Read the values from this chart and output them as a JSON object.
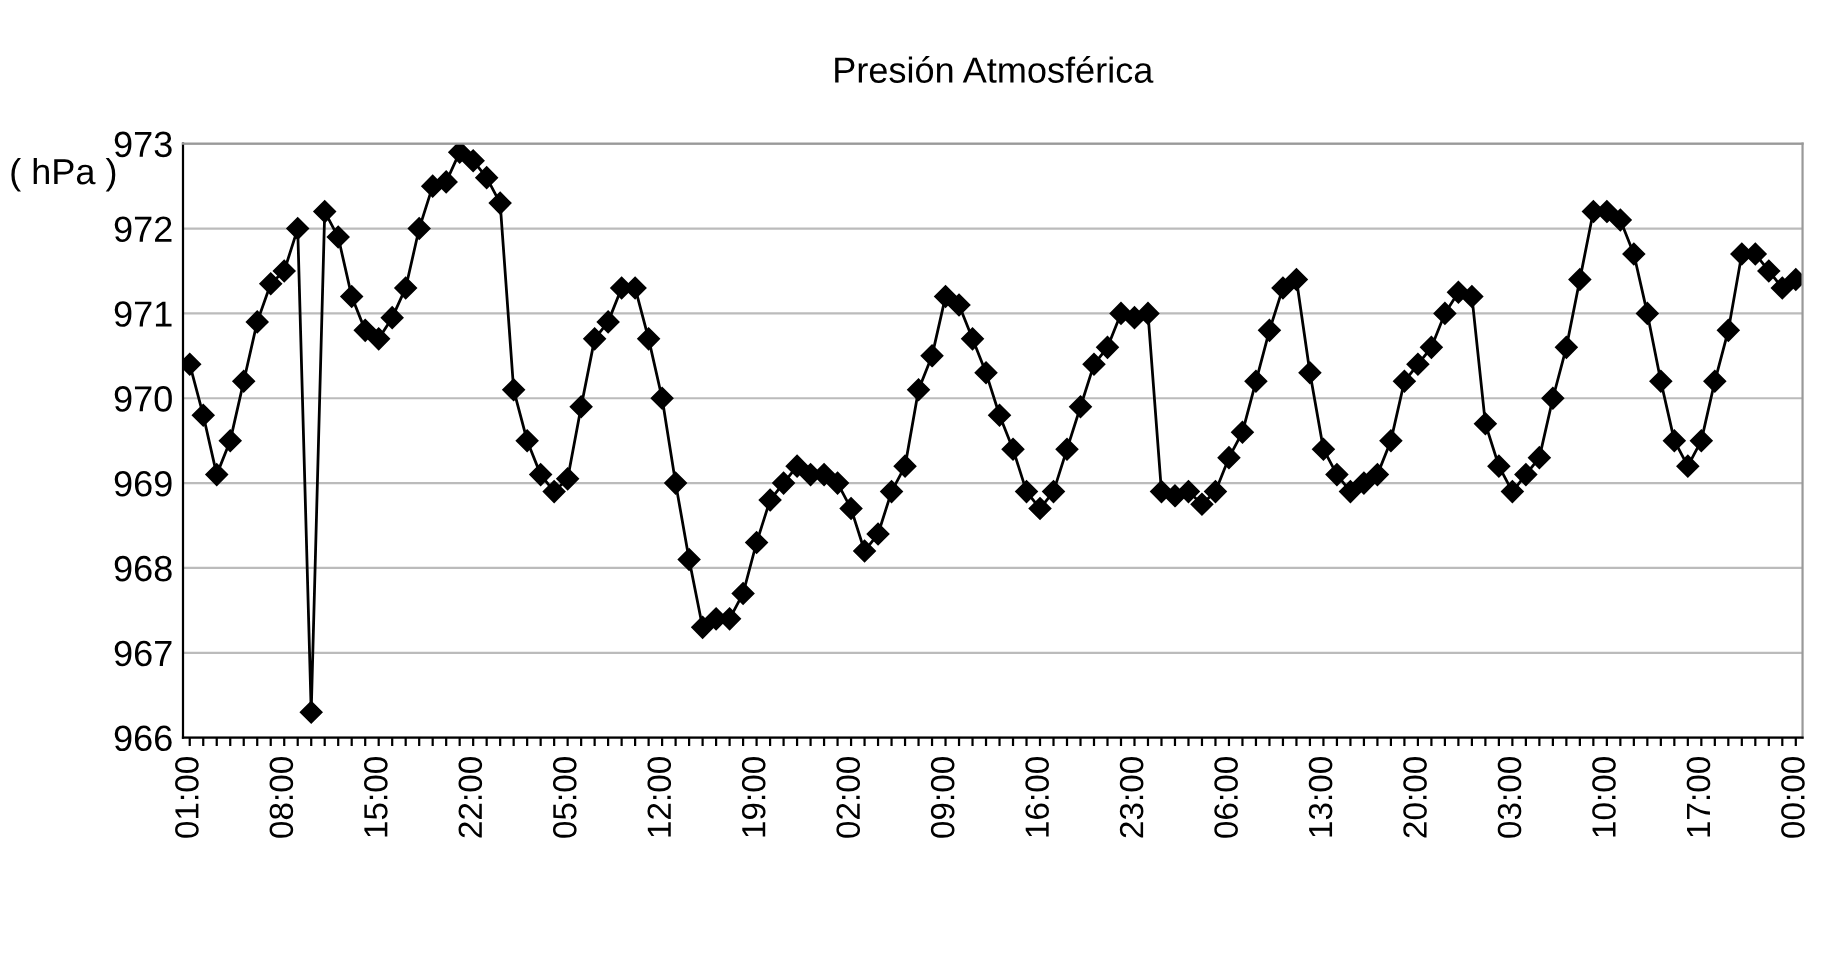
{
  "chart_data": {
    "type": "line",
    "title": "Presión Atmosférica",
    "ylabel": "( hPa )",
    "categories": [
      "01:00",
      null,
      null,
      null,
      null,
      null,
      null,
      "08:00",
      null,
      null,
      null,
      null,
      null,
      null,
      "15:00",
      null,
      null,
      null,
      null,
      null,
      null,
      "22:00",
      null,
      null,
      null,
      null,
      null,
      null,
      "05:00",
      null,
      null,
      null,
      null,
      null,
      null,
      "12:00",
      null,
      null,
      null,
      null,
      null,
      null,
      "19:00",
      null,
      null,
      null,
      null,
      null,
      null,
      "02:00",
      null,
      null,
      null,
      null,
      null,
      null,
      "09:00",
      null,
      null,
      null,
      null,
      null,
      null,
      "16:00",
      null,
      null,
      null,
      null,
      null,
      null,
      "23:00",
      null,
      null,
      null,
      null,
      null,
      null,
      "06:00",
      null,
      null,
      null,
      null,
      null,
      null,
      "13:00",
      null,
      null,
      null,
      null,
      null,
      null,
      "20:00",
      null,
      null,
      null,
      null,
      null,
      null,
      "03:00",
      null,
      null,
      null,
      null,
      null,
      null,
      "10:00",
      null,
      null,
      null,
      null,
      null,
      null,
      "17:00",
      null,
      null,
      null,
      null,
      null,
      null,
      "00:00"
    ],
    "series": [
      {
        "color": "#000000",
        "values": [
          970.4,
          969.8,
          969.1,
          969.5,
          970.2,
          970.9,
          971.35,
          971.5,
          972.0,
          966.3,
          972.2,
          971.9,
          971.2,
          970.8,
          970.7,
          970.95,
          971.3,
          972.0,
          972.5,
          972.55,
          972.9,
          972.8,
          972.6,
          972.3,
          970.1,
          969.5,
          969.1,
          968.9,
          969.05,
          969.9,
          970.7,
          970.9,
          971.3,
          971.3,
          970.7,
          970.0,
          969.0,
          968.1,
          967.3,
          967.4,
          967.4,
          967.7,
          968.3,
          968.8,
          969.0,
          969.2,
          969.1,
          969.1,
          969.0,
          968.7,
          968.2,
          968.4,
          968.9,
          969.2,
          970.1,
          970.5,
          971.2,
          971.1,
          970.7,
          970.3,
          969.8,
          969.4,
          968.9,
          968.7,
          968.9,
          969.4,
          969.9,
          970.4,
          970.6,
          971.0,
          970.95,
          971.0,
          968.9,
          968.85,
          968.9,
          968.75,
          968.9,
          969.3,
          969.6,
          970.2,
          970.8,
          971.3,
          971.4,
          970.3,
          969.4,
          969.1,
          968.9,
          969.0,
          969.1,
          969.5,
          970.2,
          970.4,
          970.6,
          971.0,
          971.25,
          971.2,
          969.7,
          969.2,
          968.9,
          969.1,
          969.3,
          970.0,
          970.6,
          971.4,
          972.2,
          972.2,
          972.1,
          971.7,
          971.0,
          970.2,
          969.5,
          969.2,
          969.5,
          970.2,
          970.8,
          971.7,
          971.7,
          971.5,
          971.3,
          971.4
        ]
      }
    ],
    "ylim": [
      966,
      973
    ],
    "yticks": [
      966,
      967,
      968,
      969,
      970,
      971,
      972,
      973
    ],
    "grid": "y",
    "marker": "diamond",
    "line_style": "solid"
  }
}
